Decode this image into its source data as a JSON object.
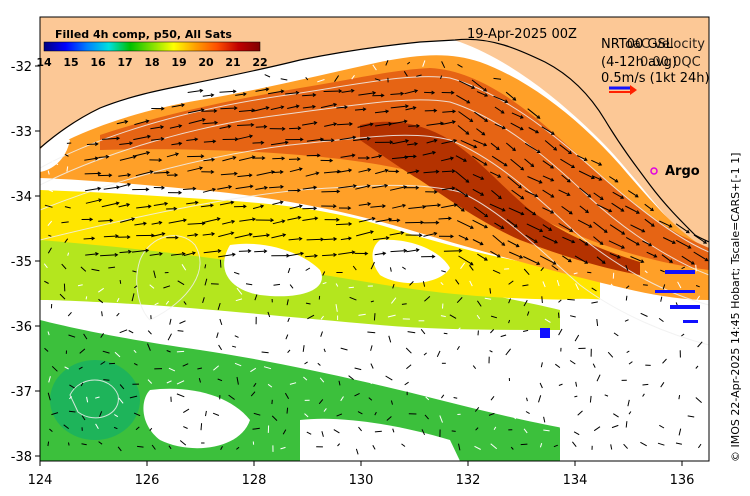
{
  "header": {
    "colorbar_title": "Filled 4h comp, p50, All Sats",
    "date": "19-Apr-2025 00Z",
    "overlay_a_line1": "NRT00 GSL",
    "overlay_a_line2": "(4-12h avg)",
    "overlay_b_line1": "oaC velocity",
    "overlay_b_line2": "0.00 0QC",
    "scale_text": "0.5m/s (1kt 24h)",
    "argo_label": "Argo"
  },
  "side_credit": "© IMOS 22-Apr-2025 14:45 Hobart; Tscale=CARS+[-1 1]",
  "colorbar": {
    "ticks": [
      "14",
      "15",
      "16",
      "17",
      "18",
      "19",
      "20",
      "21",
      "22"
    ],
    "stops": [
      "#00007f",
      "#0000ff",
      "#0080ff",
      "#00e0e0",
      "#00c000",
      "#80e000",
      "#ffff00",
      "#ffa000",
      "#ff5000",
      "#c00000",
      "#800000"
    ]
  },
  "axes": {
    "x_ticks": [
      "124",
      "126",
      "128",
      "130",
      "132",
      "134",
      "136"
    ],
    "y_ticks": [
      "-32",
      "-33",
      "-34",
      "-35",
      "-36",
      "-37",
      "-38"
    ]
  },
  "colors": {
    "land": "#fcc896",
    "coast": "#000000",
    "arrow": "#000000",
    "argo": "#e000e0",
    "scale_blue": "#1010ff",
    "scale_red": "#ff2000"
  }
}
